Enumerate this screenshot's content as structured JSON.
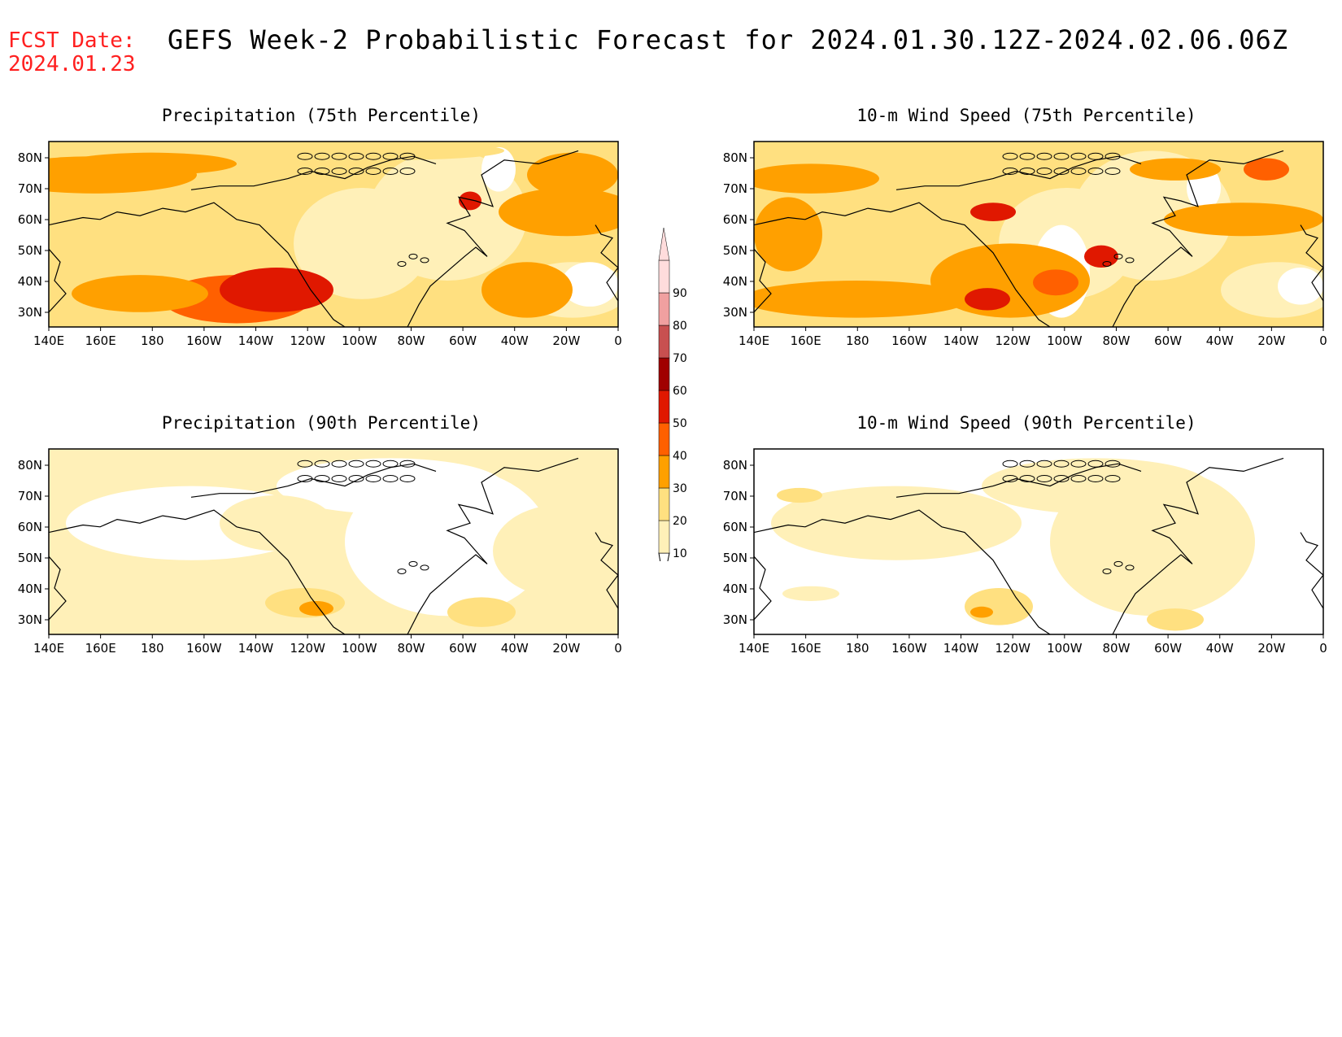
{
  "fcst_date": {
    "label": "FCST Date:",
    "value": "2024.01.23"
  },
  "title": "GEFS Week-2 Probabilistic Forecast for 2024.01.30.12Z-2024.02.06.06Z",
  "lon_ticks": [
    "140E",
    "160E",
    "180",
    "160W",
    "140W",
    "120W",
    "100W",
    "80W",
    "60W",
    "40W",
    "20W",
    "0"
  ],
  "lat_ticks": [
    "80N",
    "70N",
    "60N",
    "50N",
    "40N",
    "30N"
  ],
  "colorbar": {
    "levels": [
      "10",
      "20",
      "30",
      "40",
      "50",
      "60",
      "70",
      "80",
      "90"
    ],
    "colors": [
      "#fff0b8",
      "#ffe080",
      "#ffa000",
      "#ff6000",
      "#e01800",
      "#a00000",
      "#c85050",
      "#f0a0a0",
      "#ffdcdc"
    ]
  },
  "panels": [
    {
      "id": "precip-75",
      "title": "Precipitation (75th Percentile)",
      "intensity": "high"
    },
    {
      "id": "wind-75",
      "title": "10-m Wind Speed (75th Percentile)",
      "intensity": "high"
    },
    {
      "id": "precip-90",
      "title": "Precipitation (90th Percentile)",
      "intensity": "low"
    },
    {
      "id": "wind-90",
      "title": "10-m Wind Speed (90th Percentile)",
      "intensity": "low"
    }
  ]
}
